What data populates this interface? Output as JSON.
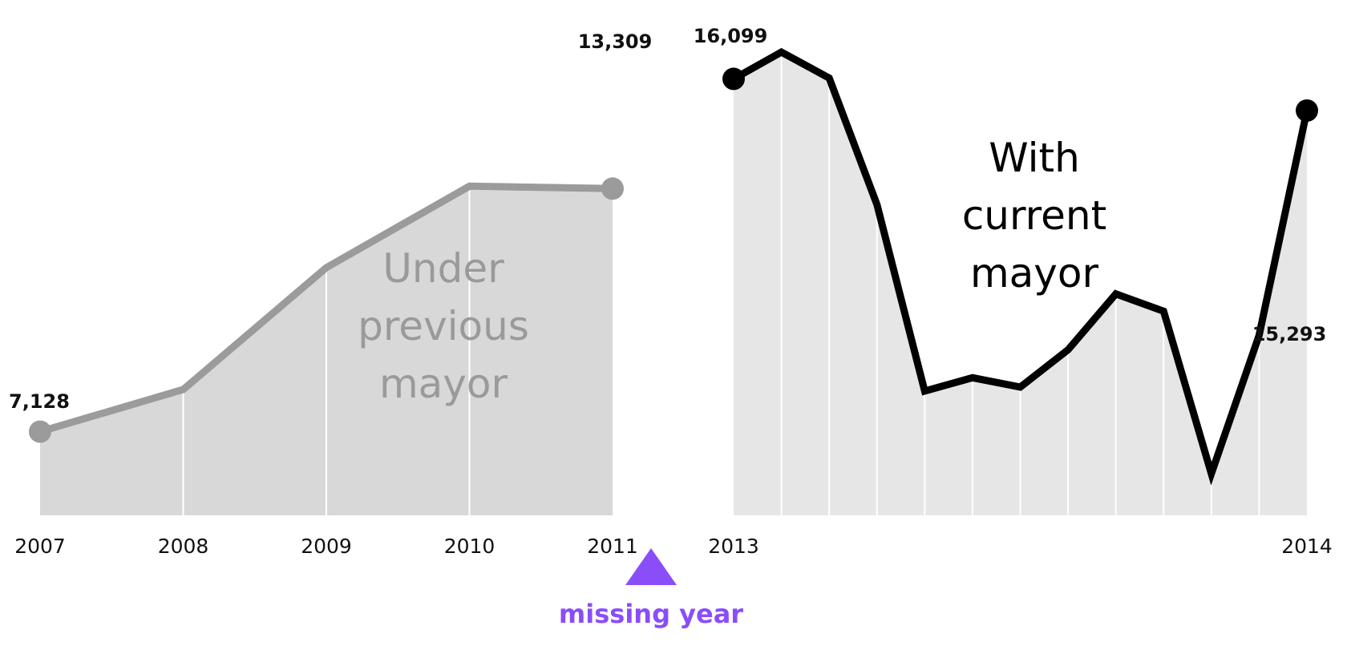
{
  "colors": {
    "previous_line": "#9b9b9b",
    "previous_fill": "#d8d8d8",
    "current_line": "#000000",
    "current_fill": "#e6e6e6",
    "gridline": "#ffffff",
    "text": "#111111",
    "annotation": "#8a4dfa"
  },
  "chart_data": [
    {
      "type": "area",
      "x_ticks": [
        "2007",
        "2008",
        "2009",
        "2010",
        "2011"
      ],
      "values": [
        7128,
        8200,
        11300,
        13370,
        13309
      ],
      "ylim": [
        5000,
        16800
      ],
      "grid": true,
      "label_lines": [
        "Under",
        "previous",
        "mayor"
      ],
      "end_labels": {
        "first": "7,128",
        "last": "13,309"
      }
    },
    {
      "type": "area",
      "x_ticks": [
        "2013",
        "2014"
      ],
      "values": [
        16099,
        16780,
        16120,
        12900,
        8160,
        8500,
        8260,
        9210,
        10630,
        10190,
        6060,
        9580,
        15293
      ],
      "ylim": [
        5000,
        16800
      ],
      "grid": true,
      "label_lines": [
        "With",
        "current",
        "mayor"
      ],
      "end_labels": {
        "first": "16,099",
        "last": "15,293"
      }
    }
  ],
  "annotation": {
    "text": "missing year"
  }
}
